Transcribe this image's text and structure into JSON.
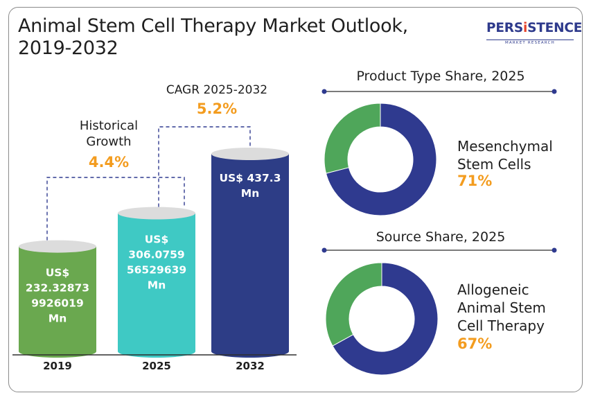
{
  "title": "Animal Stem Cell Therapy Market Outlook, 2019-2032",
  "logo": {
    "brand_pre": "PERS",
    "brand_accent": "i",
    "brand_post": "STENCE",
    "tagline": "MARKET RESEARCH"
  },
  "colors": {
    "bar_2019": "#6aa84f",
    "bar_2025": "#3fc9c4",
    "bar_2032": "#2d3d86",
    "donut_major": "#2f3a8f",
    "donut_minor": "#4fa65a",
    "accent": "#f39c1f",
    "connector": "#2f3a8f"
  },
  "annotations": {
    "historical": {
      "label_line1": "Historical",
      "label_line2": "Growth",
      "value": "4.4%"
    },
    "cagr": {
      "label": "CAGR 2025-2032",
      "value": "5.2%"
    }
  },
  "chart_data": [
    {
      "type": "bar",
      "categories": [
        "2019",
        "2025",
        "2032"
      ],
      "values": [
        232.32873992602,
        306.075956529639,
        437.3
      ],
      "value_labels": [
        [
          "US$",
          "232.32873",
          "9926019",
          "Mn"
        ],
        [
          "US$",
          "306.0759",
          "56529639",
          "Mn"
        ],
        [
          "US$ 437.3",
          "Mn"
        ]
      ],
      "title": "",
      "xlabel": "",
      "ylabel": ""
    },
    {
      "type": "pie",
      "title": "Product Type Share, 2025",
      "labels": [
        "Mesenchymal Stem Cells",
        "Other"
      ],
      "values": [
        71,
        29
      ],
      "highlight_label_lines": [
        "Mesenchymal",
        "Stem Cells"
      ],
      "highlight_value": "71%"
    },
    {
      "type": "pie",
      "title": "Source Share, 2025",
      "labels": [
        "Allogeneic Animal Stem Cell Therapy",
        "Other"
      ],
      "values": [
        67,
        33
      ],
      "highlight_label_lines": [
        "Allogeneic",
        "Animal Stem",
        "Cell Therapy"
      ],
      "highlight_value": "67%"
    }
  ]
}
